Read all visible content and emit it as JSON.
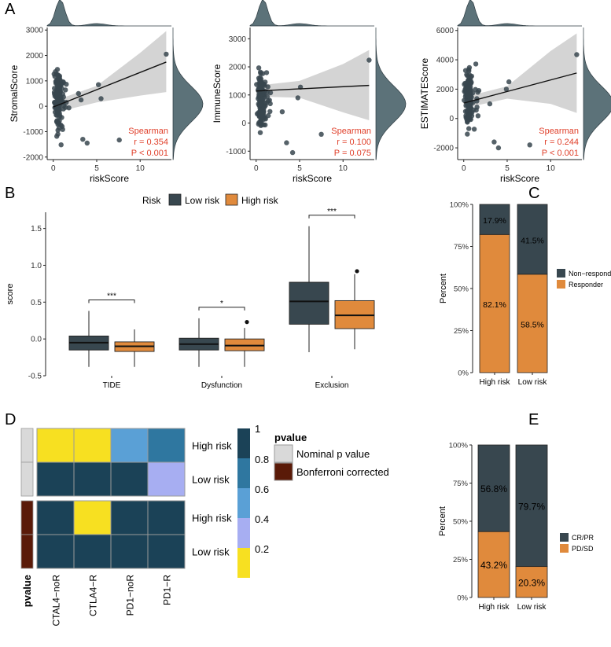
{
  "panel_labels": {
    "a": "A",
    "b": "B",
    "c": "C",
    "d": "D",
    "e": "E"
  },
  "colors": {
    "teal_dark": "#38474f",
    "orange": "#e08a3c",
    "ribbon": "#cfcfcf",
    "density": "#5c7279",
    "red_text": "#e0402b",
    "yellow": "#f7e021",
    "blue_mid": "#5aa0d6",
    "blue_steel": "#2f77a0",
    "lavender": "#a7aef2",
    "navy": "#1b4257",
    "grey": "#d9d9d9",
    "brown": "#5a1a08"
  },
  "chart_data": [
    {
      "id": "A1",
      "type": "scatter",
      "xlabel": "riskScore",
      "ylabel": "StromalScore",
      "xlim": [
        -0.7,
        13.6
      ],
      "ylim": [
        -2100,
        3100
      ],
      "xticks": [
        0,
        5,
        10
      ],
      "yticks": [
        -2000,
        -1000,
        0,
        1000,
        2000,
        3000
      ],
      "fit": {
        "x0": 0,
        "y0": -30,
        "x1": 13,
        "y1": 1740
      },
      "band_lower": [
        [
          0,
          -260
        ],
        [
          5,
          150
        ],
        [
          10,
          420
        ],
        [
          13,
          560
        ]
      ],
      "band_upper": [
        [
          0,
          200
        ],
        [
          5,
          800
        ],
        [
          10,
          2100
        ],
        [
          13,
          2960
        ]
      ],
      "outliers": [
        [
          13,
          2050
        ],
        [
          5.2,
          850
        ],
        [
          5.5,
          300
        ],
        [
          7.6,
          -1330
        ],
        [
          3.4,
          -1300
        ],
        [
          3.9,
          -1450
        ],
        [
          3.2,
          250
        ],
        [
          2.9,
          500
        ]
      ],
      "annotation": {
        "method": "Spearman",
        "r": "r = 0.354",
        "p": "P < 0.001"
      }
    },
    {
      "id": "A2",
      "type": "scatter",
      "xlabel": "riskScore",
      "ylabel": "ImmuneScore",
      "xlim": [
        -0.7,
        13.6
      ],
      "ylim": [
        -1300,
        3400
      ],
      "xticks": [
        0,
        5,
        10
      ],
      "yticks": [
        -1000,
        0,
        1000,
        2000,
        3000
      ],
      "fit": {
        "x0": 0,
        "y0": 1140,
        "x1": 13,
        "y1": 1340
      },
      "band_lower": [
        [
          0,
          950
        ],
        [
          5,
          900
        ],
        [
          10,
          380
        ],
        [
          13,
          100
        ]
      ],
      "band_upper": [
        [
          0,
          1330
        ],
        [
          5,
          1500
        ],
        [
          10,
          2100
        ],
        [
          13,
          2600
        ]
      ],
      "outliers": [
        [
          13,
          2240
        ],
        [
          5.1,
          1280
        ],
        [
          4.8,
          900
        ],
        [
          7.5,
          -400
        ],
        [
          3.5,
          -700
        ],
        [
          4.2,
          -1050
        ],
        [
          3.0,
          400
        ]
      ],
      "annotation": {
        "method": "Spearman",
        "r": "r = 0.100",
        "p": "P = 0.075"
      }
    },
    {
      "id": "A3",
      "type": "scatter",
      "xlabel": "riskScore",
      "ylabel": "ESTIMATEScore",
      "xlim": [
        -0.7,
        13.6
      ],
      "ylim": [
        -2800,
        6200
      ],
      "xticks": [
        0,
        5,
        10
      ],
      "yticks": [
        -2000,
        0,
        2000,
        4000,
        6000
      ],
      "fit": {
        "x0": 0,
        "y0": 1050,
        "x1": 13,
        "y1": 3100
      },
      "band_lower": [
        [
          0,
          700
        ],
        [
          5,
          1350
        ],
        [
          10,
          1000
        ],
        [
          13,
          380
        ]
      ],
      "band_upper": [
        [
          0,
          1450
        ],
        [
          5,
          2200
        ],
        [
          10,
          4600
        ],
        [
          13,
          5800
        ]
      ],
      "outliers": [
        [
          13,
          4350
        ],
        [
          5.2,
          2500
        ],
        [
          4.9,
          2000
        ],
        [
          7.6,
          -1800
        ],
        [
          3.5,
          -1600
        ],
        [
          4.0,
          -2000
        ],
        [
          3.0,
          1000
        ]
      ],
      "annotation": {
        "method": "Spearman",
        "r": "r = 0.244",
        "p": "P < 0.001"
      }
    },
    {
      "id": "B",
      "type": "box",
      "ylabel": "score",
      "ylim": [
        -0.5,
        1.72
      ],
      "yticks": [
        -0.5,
        0.0,
        0.5,
        1.0,
        1.5
      ],
      "legend": {
        "title": "Risk",
        "items": [
          "Low risk",
          "High risk"
        ]
      },
      "categories": [
        "TIDE",
        "Dysfunction",
        "Exclusion"
      ],
      "series": [
        {
          "name": "Low risk",
          "boxes": [
            {
              "min": -0.38,
              "q1": -0.15,
              "median": -0.05,
              "q3": 0.04,
              "max": 0.38
            },
            {
              "min": -0.38,
              "q1": -0.15,
              "median": -0.07,
              "q3": 0.01,
              "max": 0.28
            },
            {
              "min": -0.18,
              "q1": 0.2,
              "median": 0.51,
              "q3": 0.77,
              "max": 1.53
            }
          ]
        },
        {
          "name": "High risk",
          "boxes": [
            {
              "min": -0.38,
              "q1": -0.17,
              "median": -0.1,
              "q3": -0.04,
              "max": 0.13
            },
            {
              "min": -0.38,
              "q1": -0.16,
              "median": -0.09,
              "q3": 0.0,
              "max": 0.15,
              "outliers": [
                0.23
              ]
            },
            {
              "min": -0.14,
              "q1": 0.14,
              "median": 0.32,
              "q3": 0.52,
              "max": 0.88,
              "outliers": [
                0.92
              ]
            }
          ]
        }
      ],
      "significance": [
        "***",
        "*",
        "***"
      ]
    },
    {
      "id": "C",
      "type": "stacked_bar",
      "ylabel": "Percent",
      "yticks": [
        "0%",
        "25%",
        "50%",
        "75%",
        "100%"
      ],
      "categories": [
        "High risk",
        "Low risk"
      ],
      "series": [
        {
          "name": "Responder",
          "values": [
            82.1,
            58.5
          ]
        },
        {
          "name": "Non−responder",
          "values": [
            17.9,
            41.5
          ]
        }
      ],
      "labels": [
        [
          "82.1%",
          "17.9%"
        ],
        [
          "58.5%",
          "41.5%"
        ]
      ],
      "legend": [
        "Non−responder",
        "Responder"
      ]
    },
    {
      "id": "D",
      "type": "heatmap",
      "columns": [
        "CTAL4−noR",
        "CTLA4−R",
        "PD1−noR",
        "PD1−R"
      ],
      "row_labels": [
        "High risk",
        "Low risk",
        "High risk",
        "Low risk"
      ],
      "values": [
        [
          0.05,
          0.05,
          0.45,
          0.7
        ],
        [
          0.95,
          0.95,
          0.95,
          0.3
        ],
        [
          0.95,
          0.05,
          0.95,
          0.95
        ],
        [
          0.95,
          0.95,
          0.95,
          0.95
        ]
      ],
      "row_annotation": [
        "Nominal p value",
        "Nominal p value",
        "Bonferroni corrected",
        "Bonferroni corrected"
      ],
      "annotation_title": "pvalue",
      "legend_title": "pvalue",
      "legend_items": [
        "Nominal p value",
        "Bonferroni corrected"
      ],
      "colorbar_ticks": [
        "1",
        "0.8",
        "0.6",
        "0.4",
        "0.2"
      ]
    },
    {
      "id": "E",
      "type": "stacked_bar",
      "ylabel": "Percent",
      "yticks": [
        "0%",
        "25%",
        "50%",
        "75%",
        "100%"
      ],
      "categories": [
        "High risk",
        "Low risk"
      ],
      "series": [
        {
          "name": "PD/SD",
          "values": [
            43.2,
            20.3
          ]
        },
        {
          "name": "CR/PR",
          "values": [
            56.8,
            79.7
          ]
        }
      ],
      "labels": [
        [
          "43.2%",
          "56.8%"
        ],
        [
          "20.3%",
          "79.7%"
        ]
      ],
      "legend": [
        "CR/PR",
        "PD/SD"
      ]
    }
  ]
}
